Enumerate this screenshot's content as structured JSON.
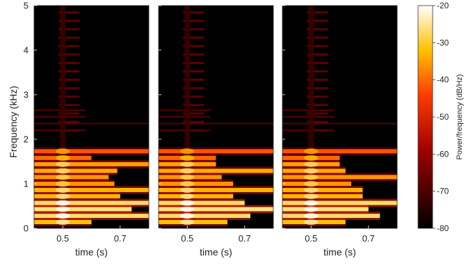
{
  "chart_data": {
    "type": "heatmap",
    "panels": [
      {
        "x_range": [
          0.4,
          0.8
        ],
        "x_ticks": [
          0.5,
          0.7
        ],
        "xlabel": "time (s)",
        "harmonics_khz": [
          0.14,
          0.28,
          0.43,
          0.57,
          0.72,
          0.86,
          1.0,
          1.15,
          1.29,
          1.44,
          1.58,
          1.73
        ],
        "band_ends_s": [
          0.6,
          0.8,
          0.74,
          0.8,
          0.7,
          0.8,
          0.68,
          0.66,
          0.69,
          0.8,
          0.6,
          0.8
        ]
      },
      {
        "x_range": [
          0.4,
          0.8
        ],
        "x_ticks": [
          0.5,
          0.7
        ],
        "xlabel": "time (s)",
        "harmonics_khz": [
          0.14,
          0.28,
          0.43,
          0.57,
          0.72,
          0.86,
          1.0,
          1.15,
          1.29,
          1.44,
          1.58,
          1.73
        ],
        "band_ends_s": [
          0.64,
          0.72,
          0.8,
          0.7,
          0.66,
          0.8,
          0.66,
          0.62,
          0.8,
          0.6,
          0.6,
          0.8
        ]
      },
      {
        "x_range": [
          0.4,
          0.8
        ],
        "x_ticks": [
          0.5,
          0.7
        ],
        "xlabel": "time (s)",
        "harmonics_khz": [
          0.14,
          0.28,
          0.43,
          0.57,
          0.72,
          0.86,
          1.0,
          1.15,
          1.29,
          1.44,
          1.58,
          1.73
        ],
        "band_ends_s": [
          0.62,
          0.74,
          0.7,
          0.8,
          0.68,
          0.68,
          0.64,
          0.8,
          0.62,
          0.6,
          0.6,
          0.8
        ]
      }
    ],
    "band_levels_db": [
      -32,
      -27,
      -26,
      -27,
      -33,
      -33,
      -36,
      -36,
      -34,
      -35,
      -40,
      -42
    ],
    "upper_bands_khz": [
      2.2,
      2.35,
      2.5,
      2.65
    ],
    "ylabel": "Frequency (kHz)",
    "y_range": [
      0,
      5
    ],
    "y_ticks": [
      0,
      1,
      2,
      3,
      4,
      5
    ],
    "colorbar": {
      "label": "Power/frequency (dB/Hz)",
      "range": [
        -80,
        -20
      ],
      "ticks": [
        -20,
        -30,
        -40,
        -50,
        -60,
        -70,
        -80
      ]
    }
  }
}
